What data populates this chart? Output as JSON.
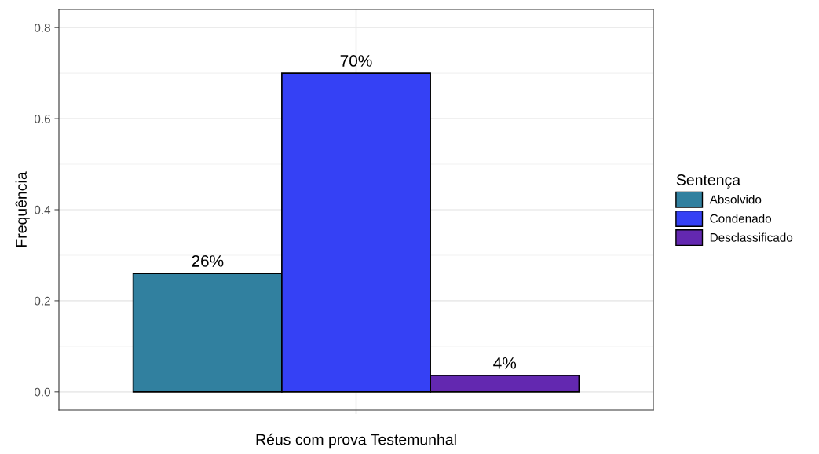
{
  "chart_data": {
    "type": "bar",
    "xlabel": "Réus com prova Testemunhal",
    "ylabel": "Frequência",
    "legend_title": "Sentença",
    "categories": [
      null
    ],
    "series": [
      {
        "name": "Absolvido",
        "color": "#31809f",
        "values": [
          0.26
        ],
        "value_labels": [
          "26%"
        ]
      },
      {
        "name": "Condenado",
        "color": "#3541f5",
        "values": [
          0.7
        ],
        "value_labels": [
          "70%"
        ]
      },
      {
        "name": "Desclassificado",
        "color": "#6328b0",
        "values": [
          0.036
        ],
        "value_labels": [
          "4%"
        ]
      }
    ],
    "ylim": [
      -0.04,
      0.84
    ],
    "yticks": [
      {
        "value": 0,
        "label": "0.0"
      },
      0.2,
      0.4,
      0.6,
      0.8
    ],
    "grid": true,
    "legend": "right"
  }
}
